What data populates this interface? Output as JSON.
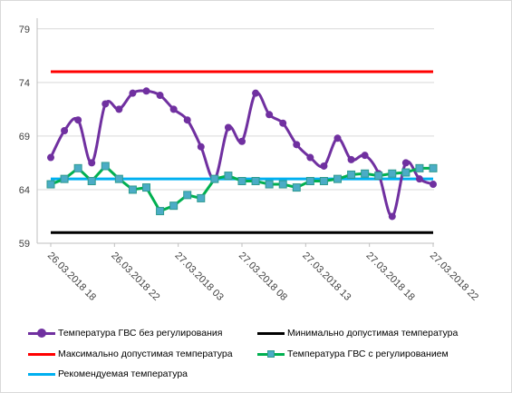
{
  "chart_data": {
    "type": "line",
    "title": "",
    "xlabel": "",
    "ylabel": "",
    "ylim": [
      59,
      80
    ],
    "yticks": [
      59,
      64,
      69,
      74,
      79
    ],
    "grid": "horizontal",
    "legend_position": "bottom",
    "x_tick_labels": [
      "26.03.2018 18",
      "26.03.2018 22",
      "27.03.2018 03",
      "27.03.2018 08",
      "27.03.2018 13",
      "27.03.2018 18",
      "27.03.2018 22"
    ],
    "series": [
      {
        "name": "Температура ГВС без регулирования",
        "color": "#7030a0",
        "marker": "circle",
        "values": [
          67.0,
          69.5,
          70.5,
          66.5,
          72.0,
          71.5,
          73.0,
          73.2,
          72.8,
          71.5,
          70.5,
          68.0,
          65.0,
          69.8,
          68.5,
          73.0,
          71.0,
          70.2,
          68.2,
          67.0,
          66.2,
          68.8,
          66.8,
          67.2,
          65.5,
          61.5,
          66.5,
          65.0,
          64.5
        ]
      },
      {
        "name": "Температура ГВС с регулированием",
        "color": "#00b050",
        "marker": "square",
        "values": [
          64.5,
          65.0,
          66.0,
          64.8,
          66.2,
          65.0,
          64.0,
          64.2,
          62.0,
          62.5,
          63.5,
          63.2,
          65.0,
          65.3,
          64.8,
          64.8,
          64.5,
          64.5,
          64.2,
          64.8,
          64.8,
          65.0,
          65.4,
          65.5,
          65.3,
          65.5,
          65.6,
          66.0,
          66.0
        ]
      },
      {
        "name": "Минимально допустимая температура",
        "color": "#000000",
        "constant": 60.0
      },
      {
        "name": "Максимально допустимая температура",
        "color": "#ff0000",
        "constant": 75.0
      },
      {
        "name": "Рекомендуемая температура",
        "color": "#00b0f0",
        "constant": 65.0
      }
    ]
  },
  "legend": {
    "items": [
      {
        "label": "Температура ГВС без регулирования"
      },
      {
        "label": "Минимально допустимая температура"
      },
      {
        "label": "Максимально допустимая температура"
      },
      {
        "label": "Температура ГВС с регулированием"
      },
      {
        "label": "Рекомендуемая температура"
      }
    ]
  }
}
